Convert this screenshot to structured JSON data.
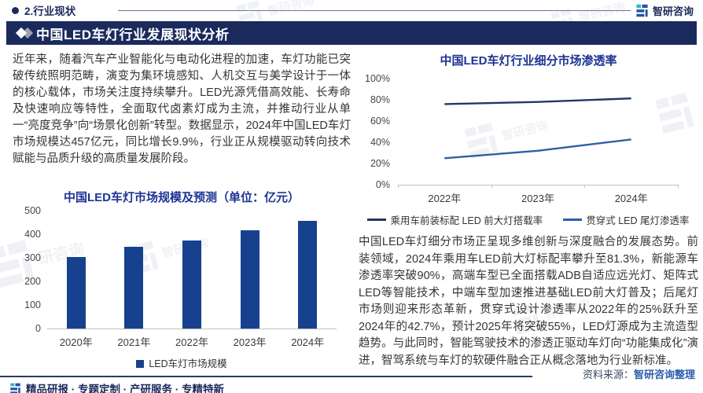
{
  "header": {
    "section_label": "2.行业现状",
    "brand": "智研咨询"
  },
  "title_bar": {
    "title": "中国LED车灯行业发展现状分析"
  },
  "left": {
    "intro": "近年来，随着汽车产业智能化与电动化进程的加速，车灯功能已突破传统照明范畴，演变为集环境感知、人机交互与美学设计于一体的核心载体，市场关注度持续攀升。LED光源凭借高效能、长寿命及快速响应等特性，全面取代卤素灯成为主流，并推动行业从单一“亮度竞争”向“场景化创新”转型。数据显示，2024年中国LED车灯市场规模达457亿元，同比增长9.9%，行业正从规模驱动转向技术赋能与品质升级的高质量发展阶段。"
  },
  "right": {
    "analysis": "中国LED车灯细分市场正呈现多维创新与深度融合的发展态势。前装领域，2024年乘用车LED前大灯标配率攀升至81.3%，新能源车渗透率突破90%，高端车型已全面搭载ADB自适应远光灯、矩阵式LED等智能技术，中端车型加速推进基础LED前大灯普及；后尾灯市场则迎来形态革新，贯穿式设计渗透率从2022年的25%跃升至2024年的42.7%，预计2025年将突破55%，LED灯源成为主流造型趋势。与此同时，智能驾驶技术的渗透正驱动车灯向“功能集成化”演进，智驾系统与车灯的软硬件融合正从概念落地为行业新标准。"
  },
  "chart_data": [
    {
      "type": "bar",
      "title": "中国LED车灯市场规模及预测（单位：亿元）",
      "categories": [
        "2020年",
        "2021年",
        "2022年",
        "2023年",
        "2024年"
      ],
      "values": [
        303,
        348,
        372,
        416,
        457
      ],
      "ylim": [
        0,
        500
      ],
      "ytick_step": 100,
      "legend_label": "LED车灯市场规模",
      "color": "#17418f",
      "grid": false,
      "legend_position": "bottom"
    },
    {
      "type": "line",
      "title": "中国LED车灯行业细分市场渗透率",
      "categories": [
        "2022年",
        "2023年",
        "2024年"
      ],
      "series": [
        {
          "name": "乘用车前装标配 LED 前大灯搭载率",
          "values": [
            76,
            78,
            81.3
          ],
          "color": "#1f3864"
        },
        {
          "name": "贯穿式 LED 尾灯渗透率",
          "values": [
            25,
            32,
            42.7
          ],
          "color": "#2e5fa8"
        }
      ],
      "ylim": [
        0,
        100
      ],
      "ytick_step": 20,
      "yunit": "%",
      "grid": false,
      "legend_position": "bottom"
    }
  ],
  "source": {
    "label": "资料来源：",
    "value": "智研咨询整理"
  },
  "footer": {
    "slogan": "精品研报 · 专题定制 · 产研服务 · 专精特新"
  },
  "colors": {
    "navy": "#1b2a5c",
    "chart_title_blue": "#1d3493",
    "bar_blue": "#17418f",
    "line_dark": "#1f3864",
    "line_mid": "#2e5fa8",
    "logo_teal": "#2fb8c5",
    "logo_blue": "#2353a4",
    "source_value_blue": "#2a5cae"
  }
}
